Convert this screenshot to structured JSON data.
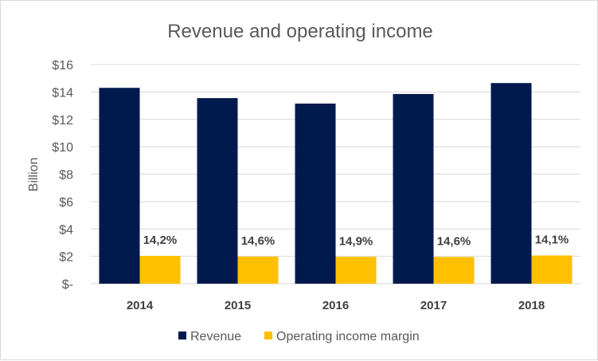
{
  "chart_data": {
    "type": "bar",
    "title": "Revenue and operating income",
    "xlabel": "",
    "ylabel": "Billion",
    "categories": [
      "2014",
      "2015",
      "2016",
      "2017",
      "2018"
    ],
    "series": [
      {
        "name": "Revenue",
        "values": [
          14.3,
          13.55,
          13.15,
          13.85,
          14.65
        ],
        "color": "#001a4d"
      },
      {
        "name": "Operating income margin",
        "values": [
          2.03,
          1.98,
          1.96,
          1.95,
          2.06
        ],
        "color": "#ffc000",
        "data_labels": [
          "14,2%",
          "14,6%",
          "14,9%",
          "14,6%",
          "14,1%"
        ]
      }
    ],
    "ylim": [
      0,
      16
    ],
    "y_ticks": [
      {
        "value": 0,
        "label": "$-"
      },
      {
        "value": 2,
        "label": "$2"
      },
      {
        "value": 4,
        "label": "$4"
      },
      {
        "value": 6,
        "label": "$6"
      },
      {
        "value": 8,
        "label": "$8"
      },
      {
        "value": 10,
        "label": "$10"
      },
      {
        "value": 12,
        "label": "$12"
      },
      {
        "value": 14,
        "label": "$14"
      },
      {
        "value": 16,
        "label": "$16"
      }
    ],
    "grid": true,
    "legend_position": "bottom"
  }
}
